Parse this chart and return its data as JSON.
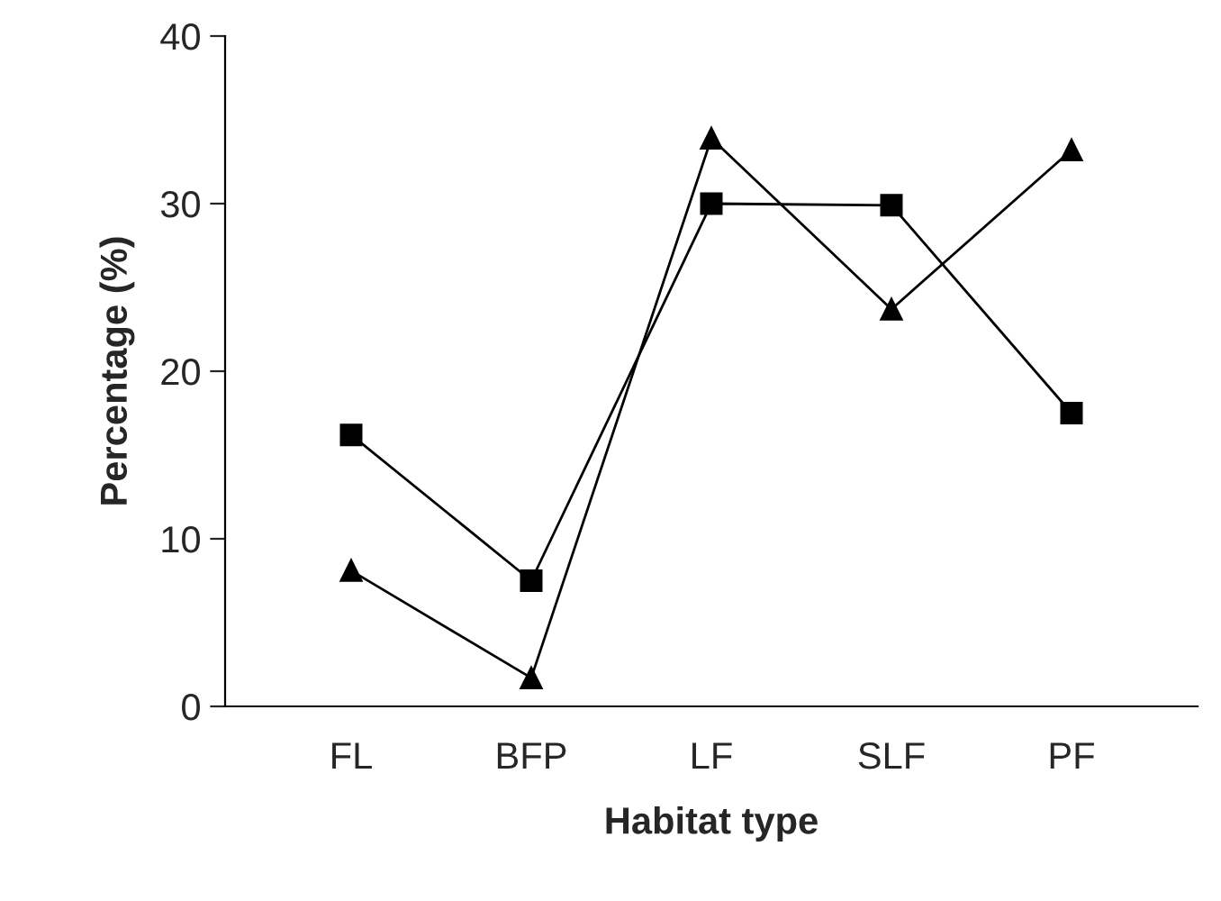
{
  "chart_data": {
    "type": "line",
    "xlabel": "Habitat type",
    "ylabel": "Percentage (%)",
    "categories": [
      "FL",
      "BFP",
      "LF",
      "SLF",
      "PF"
    ],
    "series": [
      {
        "color": "#000000",
        "marker": "square",
        "values": [
          16.2,
          7.5,
          30.0,
          29.9,
          17.5
        ]
      },
      {
        "color": "#000000",
        "marker": "triangle",
        "values": [
          8.1,
          1.7,
          33.9,
          23.7,
          33.2
        ]
      }
    ],
    "ylim": [
      0,
      40
    ],
    "yticks": [
      0,
      10,
      20,
      30,
      40
    ],
    "grid": false,
    "legend": false
  }
}
